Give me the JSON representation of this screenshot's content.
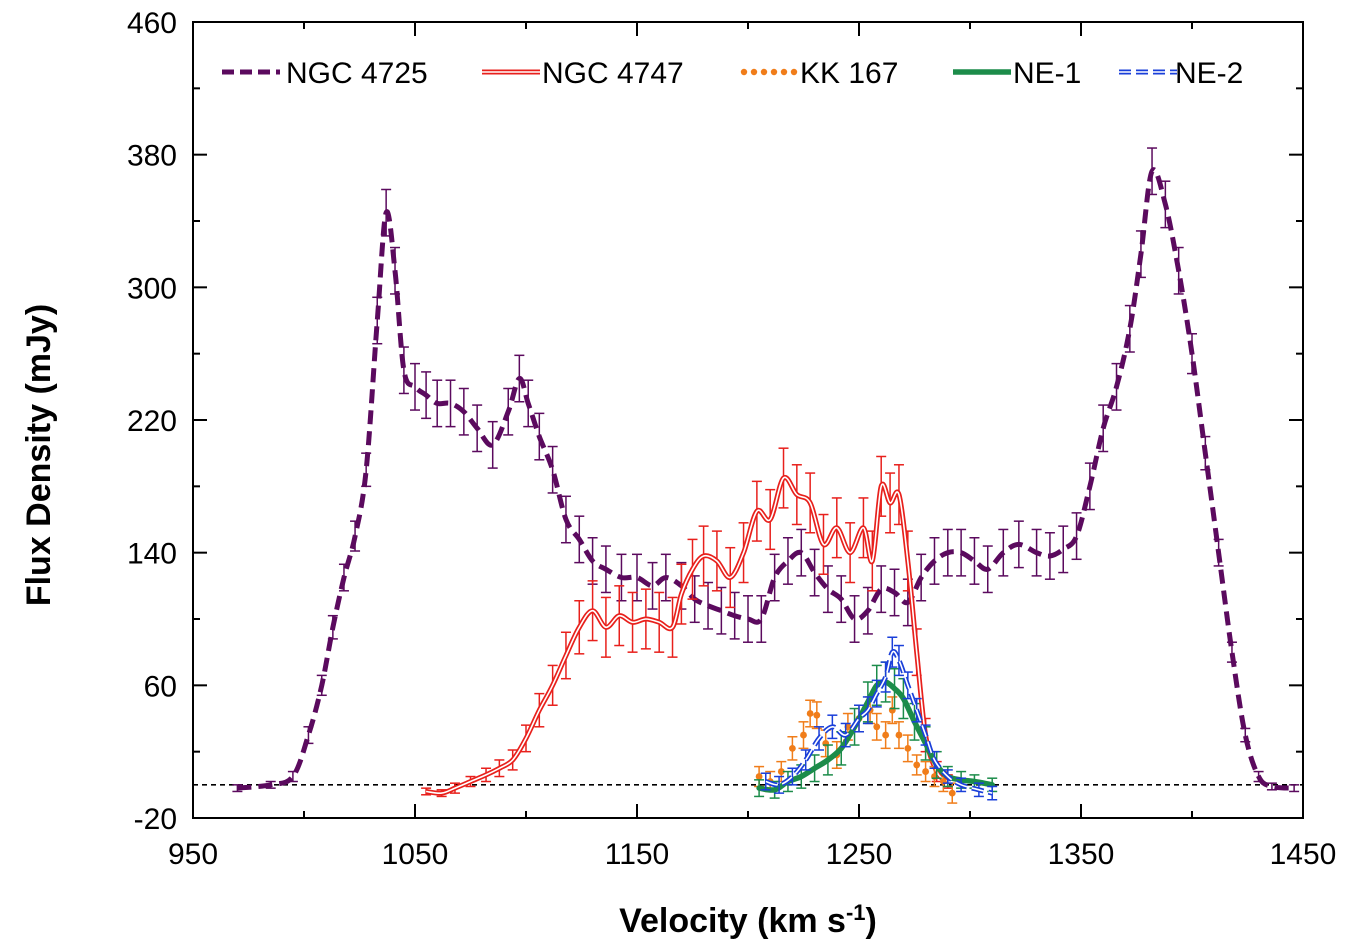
{
  "chart_data": {
    "type": "line",
    "title": "",
    "xlabel": "Velocity (km s",
    "xlabel_sup": "-1",
    "xlabel_end": ")",
    "ylabel": "Flux Density (mJy)",
    "xlim": [
      950,
      1450
    ],
    "ylim": [
      -20,
      460
    ],
    "xticks": [
      950,
      1050,
      1150,
      1250,
      1350,
      1450
    ],
    "xtick_labels": [
      "950",
      "1050",
      "1150",
      "1250",
      "1350",
      "1450"
    ],
    "yticks": [
      -20,
      60,
      140,
      220,
      300,
      380,
      460
    ],
    "ytick_labels": [
      "-20",
      "60",
      "140",
      "220",
      "300",
      "380",
      "460"
    ],
    "baseline": 0,
    "legend_position": "top",
    "series": [
      {
        "name": "NGC 4725",
        "color": "#5b0a5e",
        "style": "dashed",
        "x": [
          970,
          985,
          995,
          1002,
          1008,
          1013,
          1018,
          1023,
          1028,
          1033,
          1037,
          1041,
          1045,
          1050,
          1055,
          1060,
          1066,
          1072,
          1078,
          1085,
          1092,
          1097,
          1101,
          1106,
          1112,
          1118,
          1124,
          1130,
          1136,
          1143,
          1150,
          1157,
          1163,
          1170,
          1176,
          1182,
          1188,
          1194,
          1200,
          1206,
          1212,
          1218,
          1224,
          1230,
          1236,
          1242,
          1248,
          1254,
          1260,
          1266,
          1272,
          1278,
          1284,
          1290,
          1296,
          1302,
          1308,
          1315,
          1322,
          1330,
          1336,
          1342,
          1348,
          1354,
          1360,
          1366,
          1372,
          1377,
          1382,
          1388,
          1394,
          1400,
          1406,
          1412,
          1418,
          1424,
          1430,
          1436,
          1446
        ],
        "y": [
          -2,
          0,
          5,
          30,
          60,
          95,
          125,
          150,
          190,
          280,
          345,
          310,
          250,
          240,
          235,
          230,
          230,
          225,
          215,
          205,
          225,
          245,
          230,
          210,
          190,
          160,
          148,
          135,
          130,
          125,
          125,
          120,
          125,
          120,
          112,
          108,
          105,
          102,
          100,
          100,
          125,
          135,
          140,
          128,
          118,
          112,
          100,
          105,
          118,
          116,
          110,
          125,
          135,
          140,
          140,
          135,
          130,
          140,
          145,
          140,
          138,
          142,
          150,
          180,
          215,
          240,
          275,
          320,
          370,
          350,
          310,
          260,
          200,
          140,
          80,
          30,
          5,
          -1,
          -2
        ],
        "err": [
          2,
          2,
          3,
          5,
          6,
          7,
          8,
          9,
          10,
          14,
          14,
          14,
          14,
          14,
          14,
          14,
          14,
          14,
          14,
          14,
          14,
          14,
          14,
          14,
          14,
          14,
          14,
          14,
          14,
          14,
          14,
          14,
          14,
          14,
          14,
          14,
          14,
          14,
          14,
          14,
          14,
          14,
          14,
          14,
          14,
          14,
          14,
          14,
          14,
          14,
          14,
          14,
          14,
          14,
          14,
          14,
          14,
          14,
          14,
          14,
          14,
          14,
          14,
          14,
          14,
          14,
          14,
          14,
          14,
          14,
          14,
          12,
          10,
          8,
          6,
          4,
          3,
          2,
          2
        ]
      },
      {
        "name": "NGC 4747",
        "color": "#e8201c",
        "style": "double",
        "x": [
          1055,
          1062,
          1068,
          1075,
          1082,
          1088,
          1094,
          1100,
          1106,
          1112,
          1118,
          1124,
          1130,
          1136,
          1142,
          1148,
          1154,
          1160,
          1166,
          1170,
          1175,
          1180,
          1186,
          1192,
          1198,
          1204,
          1210,
          1216,
          1222,
          1228,
          1234,
          1240,
          1246,
          1252,
          1256,
          1260,
          1264,
          1268,
          1272,
          1276,
          1280,
          1285,
          1290
        ],
        "y": [
          -4,
          -5,
          -2,
          2,
          6,
          10,
          15,
          28,
          45,
          60,
          78,
          95,
          105,
          95,
          102,
          98,
          100,
          98,
          95,
          115,
          130,
          138,
          135,
          125,
          140,
          165,
          160,
          185,
          175,
          170,
          145,
          155,
          140,
          155,
          135,
          180,
          170,
          175,
          135,
          80,
          30,
          8,
          2
        ],
        "err": [
          2,
          2,
          3,
          3,
          4,
          5,
          6,
          8,
          10,
          12,
          14,
          16,
          18,
          18,
          18,
          18,
          18,
          18,
          18,
          18,
          18,
          18,
          18,
          18,
          18,
          18,
          18,
          18,
          18,
          18,
          18,
          18,
          18,
          18,
          18,
          18,
          18,
          18,
          18,
          14,
          10,
          6,
          4
        ]
      },
      {
        "name": "KK 167",
        "color": "#f07d1a",
        "style": "dotted",
        "x": [
          1205,
          1210,
          1215,
          1220,
          1225,
          1228,
          1231,
          1235,
          1240,
          1245,
          1250,
          1255,
          1258,
          1262,
          1265,
          1268,
          1272,
          1276,
          1280,
          1284,
          1288,
          1292
        ],
        "y": [
          5,
          2,
          8,
          22,
          30,
          43,
          42,
          25,
          18,
          35,
          40,
          45,
          35,
          30,
          45,
          30,
          22,
          12,
          8,
          5,
          2,
          -5
        ],
        "err": [
          6,
          6,
          6,
          7,
          8,
          8,
          8,
          8,
          8,
          8,
          8,
          8,
          8,
          8,
          8,
          8,
          8,
          6,
          6,
          6,
          6,
          6
        ]
      },
      {
        "name": "NE-1",
        "color": "#1c8c4a",
        "style": "solid-thick",
        "x": [
          1205,
          1212,
          1218,
          1224,
          1230,
          1236,
          1242,
          1248,
          1254,
          1258,
          1262,
          1266,
          1270,
          1275,
          1280,
          1285,
          1290,
          1296,
          1302,
          1310
        ],
        "y": [
          -2,
          -3,
          2,
          5,
          10,
          15,
          22,
          35,
          50,
          60,
          62,
          58,
          52,
          38,
          25,
          12,
          5,
          3,
          2,
          0
        ],
        "err": [
          5,
          5,
          6,
          7,
          8,
          9,
          10,
          11,
          12,
          12,
          12,
          12,
          12,
          11,
          10,
          8,
          6,
          5,
          4,
          4
        ]
      },
      {
        "name": "NE-2",
        "color": "#1a3fd9",
        "style": "double-dashed",
        "x": [
          1208,
          1214,
          1220,
          1226,
          1232,
          1238,
          1244,
          1250,
          1254,
          1258,
          1262,
          1265,
          1268,
          1272,
          1276,
          1280,
          1284,
          1290,
          1296,
          1304,
          1310
        ],
        "y": [
          2,
          0,
          5,
          15,
          28,
          35,
          30,
          40,
          45,
          55,
          65,
          80,
          75,
          60,
          45,
          30,
          15,
          5,
          0,
          -3,
          -5
        ],
        "err": [
          5,
          5,
          5,
          6,
          7,
          7,
          7,
          8,
          8,
          8,
          9,
          9,
          9,
          8,
          7,
          6,
          5,
          4,
          4,
          4,
          4
        ]
      }
    ]
  }
}
